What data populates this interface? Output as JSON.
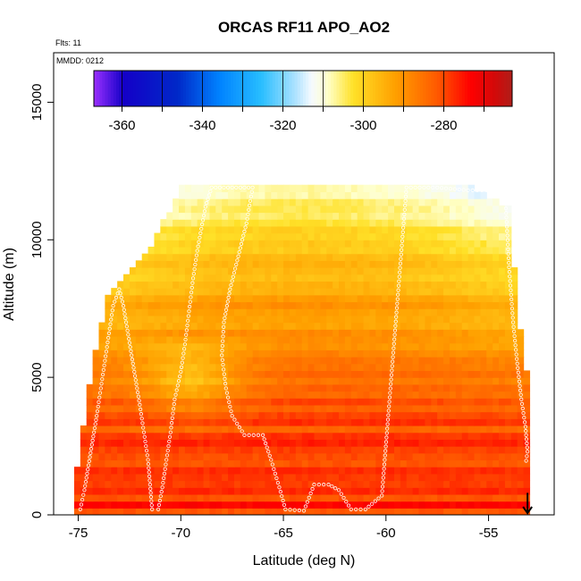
{
  "chart_data": {
    "type": "heatmap",
    "title": "ORCAS RF11 APO_AO2",
    "flights_note": "Flts: 11",
    "date_note": "MMDD: 0212",
    "xlabel": "Latitude (deg N)",
    "ylabel": "Altitude (m)",
    "xlim": [
      -76.2,
      -51.8
    ],
    "ylim": [
      0,
      16800
    ],
    "x_ticks": [
      -75,
      -70,
      -65,
      -60,
      -55
    ],
    "y_ticks": [
      0,
      5000,
      10000,
      15000
    ],
    "colorbar": {
      "range": [
        -367,
        -263
      ],
      "ticks": [
        -360,
        -340,
        -320,
        -300,
        -280
      ],
      "bin_edges": [
        -367,
        -360,
        -350,
        -340,
        -330,
        -320,
        -310,
        -300,
        -290,
        -280,
        -270,
        -263
      ]
    },
    "marker": {
      "type": "arrow-down",
      "x": -53.1,
      "y_top": 800,
      "y_bottom": 0
    },
    "field": {
      "description_rows": "altitude bins from 0 to 12000 m, curtain of APO values",
      "grid_x_start": -75.2,
      "grid_x_end": -53.0,
      "grid_dx": 0.3,
      "grid_dz": 250,
      "surface_value": -277,
      "value_at_top_pole": -318,
      "value_at_top_mid": -308,
      "top_alt_m": 12000,
      "envelope": [
        {
          "lat": -75.2,
          "top": 500
        },
        {
          "lat": -75.0,
          "top": 2200
        },
        {
          "lat": -74.5,
          "top": 4500
        },
        {
          "lat": -74.0,
          "top": 6500
        },
        {
          "lat": -73.5,
          "top": 8200
        },
        {
          "lat": -72.5,
          "top": 8800
        },
        {
          "lat": -71.5,
          "top": 9700
        },
        {
          "lat": -70.5,
          "top": 11200
        },
        {
          "lat": -70.0,
          "top": 12000
        },
        {
          "lat": -56.0,
          "top": 12000
        },
        {
          "lat": -54.0,
          "top": 11200
        },
        {
          "lat": -53.5,
          "top": 7000
        },
        {
          "lat": -53.2,
          "top": 5500
        },
        {
          "lat": -53.0,
          "top": 4500
        },
        {
          "lat": -53.0,
          "top": 2200
        }
      ]
    },
    "flight_track": [
      [
        -74.9,
        200
      ],
      [
        -74.7,
        900
      ],
      [
        -74.5,
        1800
      ],
      [
        -74.3,
        2700
      ],
      [
        -74.1,
        3600
      ],
      [
        -73.9,
        4600
      ],
      [
        -73.7,
        5600
      ],
      [
        -73.5,
        6600
      ],
      [
        -73.3,
        7600
      ],
      [
        -73.0,
        8200
      ],
      [
        -72.8,
        7600
      ],
      [
        -72.6,
        6700
      ],
      [
        -72.4,
        5800
      ],
      [
        -72.2,
        4900
      ],
      [
        -72.0,
        4000
      ],
      [
        -71.8,
        3000
      ],
      [
        -71.6,
        2000
      ],
      [
        -71.5,
        1100
      ],
      [
        -71.4,
        200
      ],
      [
        -71.1,
        200
      ],
      [
        -70.9,
        1000
      ],
      [
        -70.7,
        2000
      ],
      [
        -70.5,
        3000
      ],
      [
        -70.3,
        4200
      ],
      [
        -70.0,
        5200
      ],
      [
        -69.8,
        6200
      ],
      [
        -69.6,
        7400
      ],
      [
        -69.4,
        8600
      ],
      [
        -69.2,
        9600
      ],
      [
        -69.0,
        10400
      ],
      [
        -68.8,
        11200
      ],
      [
        -68.5,
        11900
      ],
      [
        -67.5,
        11900
      ],
      [
        -66.5,
        11900
      ],
      [
        -66.8,
        10600
      ],
      [
        -67.2,
        9400
      ],
      [
        -67.6,
        8200
      ],
      [
        -67.9,
        7000
      ],
      [
        -68.0,
        5800
      ],
      [
        -67.8,
        4600
      ],
      [
        -67.5,
        3600
      ],
      [
        -66.9,
        2900
      ],
      [
        -66.0,
        2900
      ],
      [
        -65.6,
        2000
      ],
      [
        -65.2,
        1000
      ],
      [
        -64.9,
        200
      ],
      [
        -64.0,
        150
      ],
      [
        -63.5,
        1100
      ],
      [
        -62.8,
        1100
      ],
      [
        -62.3,
        900
      ],
      [
        -61.7,
        200
      ],
      [
        -61.0,
        200
      ],
      [
        -60.2,
        700
      ],
      [
        -59.0,
        11900
      ],
      [
        -57.5,
        11900
      ],
      [
        -56.0,
        11800
      ],
      [
        -54.2,
        11800
      ],
      [
        -54.0,
        9000
      ],
      [
        -53.8,
        7000
      ],
      [
        -53.6,
        5500
      ],
      [
        -53.4,
        4200
      ],
      [
        -53.2,
        3200
      ],
      [
        -53.1,
        2300
      ],
      [
        -53.2,
        1800
      ]
    ]
  }
}
